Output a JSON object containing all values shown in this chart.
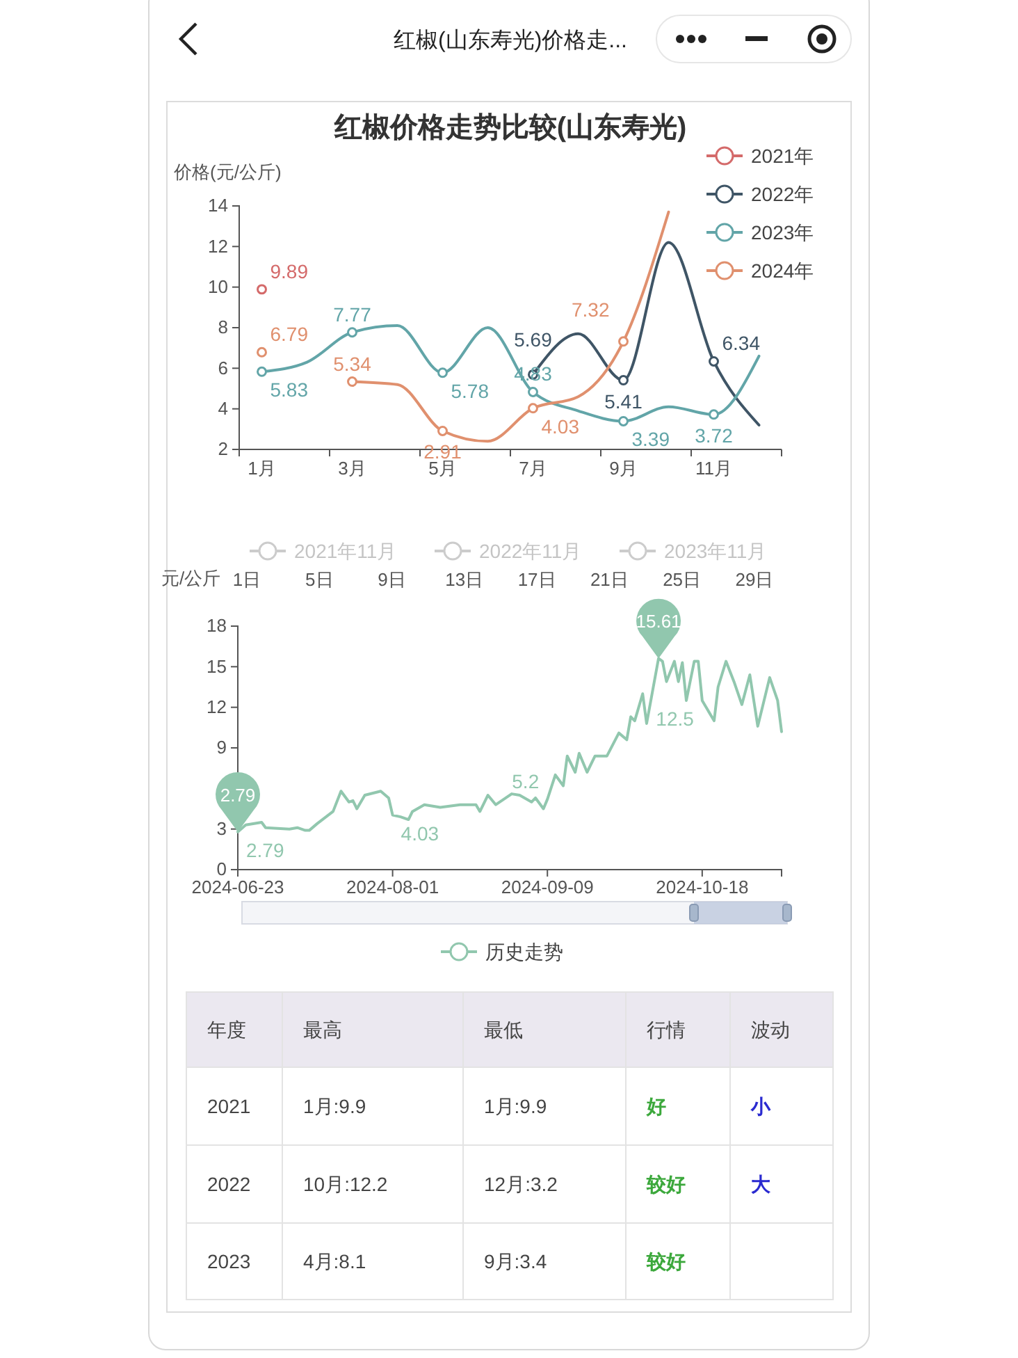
{
  "chart_data": [
    {
      "type": "other",
      "title": "红椒(山东寿光)价格走..."
    },
    {
      "type": "line",
      "title": "红椒价格走势比较(山东寿光)",
      "ylabel": "价格(元/公斤)",
      "categories": [
        "1月",
        null,
        "3月",
        null,
        "5月",
        null,
        "7月",
        null,
        "9月",
        null,
        "11月",
        null
      ],
      "ylim": [
        2,
        14
      ],
      "yticks": [
        2,
        4,
        6,
        8,
        10,
        12,
        14
      ],
      "legend": "top right",
      "marker": "circle",
      "series": [
        {
          "name": "2021年",
          "color": "#d46a6a",
          "values": [
            9.89,
            null,
            null,
            null,
            null,
            null,
            null,
            null,
            null,
            null,
            null,
            null
          ],
          "value_labels": [
            "9.89",
            null,
            null,
            null,
            null,
            null,
            null,
            null,
            null,
            null,
            null,
            null
          ]
        },
        {
          "name": "2022年",
          "color": "#3f5566",
          "values": [
            null,
            null,
            null,
            null,
            null,
            null,
            5.69,
            7.7,
            5.41,
            12.2,
            6.34,
            3.2
          ],
          "value_labels": [
            null,
            null,
            null,
            null,
            null,
            null,
            "5.69",
            null,
            "5.41",
            null,
            "6.34",
            null
          ]
        },
        {
          "name": "2023年",
          "color": "#62a5a8",
          "values": [
            5.83,
            6.3,
            7.77,
            8.1,
            5.78,
            8.0,
            4.83,
            3.9,
            3.39,
            4.1,
            3.72,
            6.6
          ],
          "value_labels": [
            "5.83",
            null,
            "7.77",
            null,
            "5.78",
            null,
            "4.83",
            null,
            "3.39",
            null,
            "3.72",
            null
          ]
        },
        {
          "name": "2024年",
          "color": "#e0906e",
          "values": [
            6.79,
            null,
            5.34,
            5.2,
            2.91,
            2.4,
            4.03,
            4.6,
            7.32,
            13.7,
            null,
            null
          ],
          "value_labels": [
            "6.79",
            null,
            "5.34",
            null,
            "2.91",
            null,
            "4.03",
            null,
            "7.32",
            null,
            null,
            null
          ]
        }
      ]
    },
    {
      "type": "line",
      "ylabel": "元/公斤",
      "xlim": [
        "2024-06-23",
        "2024-11-07"
      ],
      "xticks": [
        "2024-06-23",
        "2024-08-01",
        "2024-09-09",
        "2024-10-18"
      ],
      "x2lim": [
        0.5,
        30.5
      ],
      "x2ticks": [
        {
          "value": 1,
          "label": "1日"
        },
        {
          "value": 5,
          "label": "5日"
        },
        {
          "value": 9,
          "label": "9日"
        },
        {
          "value": 13,
          "label": "13日"
        },
        {
          "value": 17,
          "label": "17日"
        },
        {
          "value": 21,
          "label": "21日"
        },
        {
          "value": 25,
          "label": "25日"
        },
        {
          "value": 29,
          "label": "29日"
        }
      ],
      "ylim": [
        0,
        18
      ],
      "yticks": [
        0,
        3,
        6,
        9,
        12,
        15,
        18
      ],
      "legend": "bottom",
      "annotations": [
        {
          "text": "15.61",
          "x": "2024-10-07",
          "y": 15.61
        },
        {
          "text": "2.79",
          "x": "2024-06-23",
          "y": 2.79
        },
        "2021年11月",
        "2022年11月",
        "2023年11月"
      ],
      "series": [
        {
          "name": "历史走势",
          "color": "#91c7ae",
          "x": [
            "2024-06-23",
            "2024-06-25",
            "2024-06-29",
            "2024-06-30",
            "2024-07-06",
            "2024-07-08",
            "2024-07-10",
            "2024-07-11",
            "2024-07-13",
            "2024-07-17",
            "2024-07-19",
            "2024-07-21",
            "2024-07-22",
            "2024-07-23",
            "2024-07-25",
            "2024-07-29",
            "2024-07-31",
            "2024-08-01",
            "2024-08-03",
            "2024-08-05",
            "2024-08-06",
            "2024-08-09",
            "2024-08-13",
            "2024-08-18",
            "2024-08-22",
            "2024-08-23",
            "2024-08-25",
            "2024-08-27",
            "2024-08-31",
            "2024-09-02",
            "2024-09-05",
            "2024-09-06",
            "2024-09-08",
            "2024-09-09",
            "2024-09-11",
            "2024-09-13",
            "2024-09-14",
            "2024-09-16",
            "2024-09-17",
            "2024-09-19",
            "2024-09-21",
            "2024-09-24",
            "2024-09-27",
            "2024-09-29",
            "2024-09-30",
            "2024-10-01",
            "2024-10-03",
            "2024-10-04",
            "2024-10-07",
            "2024-10-08",
            "2024-10-09",
            "2024-10-11",
            "2024-10-12",
            "2024-10-13",
            "2024-10-14",
            "2024-10-16",
            "2024-10-17",
            "2024-10-18",
            "2024-10-21",
            "2024-10-22",
            "2024-10-24",
            "2024-10-26",
            "2024-10-28",
            "2024-10-30",
            "2024-11-01",
            "2024-11-04",
            "2024-11-06",
            "2024-11-07"
          ],
          "values": [
            2.79,
            3.3,
            3.5,
            3.1,
            3.0,
            3.1,
            2.9,
            2.9,
            3.4,
            4.3,
            5.8,
            5.0,
            5.1,
            4.5,
            5.5,
            5.8,
            5.3,
            4.03,
            3.9,
            3.7,
            4.3,
            4.8,
            4.6,
            4.8,
            4.8,
            4.3,
            5.5,
            4.8,
            5.6,
            5.5,
            5.0,
            5.3,
            4.5,
            5.2,
            7.0,
            6.2,
            8.4,
            7.2,
            8.6,
            7.2,
            8.4,
            8.4,
            10.1,
            9.6,
            11.3,
            11.0,
            13.0,
            10.8,
            15.61,
            15.4,
            13.9,
            15.4,
            13.9,
            15.3,
            12.5,
            15.4,
            15.4,
            12.5,
            11.0,
            13.5,
            15.4,
            13.9,
            12.2,
            14.4,
            10.6,
            14.2,
            12.5,
            10.2
          ],
          "value_labels": [
            "2.79",
            null,
            null,
            null,
            null,
            null,
            null,
            null,
            null,
            null,
            null,
            null,
            null,
            null,
            null,
            null,
            null,
            "4.03",
            null,
            null,
            null,
            null,
            null,
            null,
            null,
            null,
            null,
            null,
            null,
            null,
            null,
            null,
            null,
            "5.2",
            null,
            null,
            null,
            null,
            null,
            null,
            null,
            null,
            null,
            null,
            null,
            null,
            null,
            null,
            null,
            null,
            null,
            null,
            null,
            null,
            null,
            null,
            null,
            "12.5",
            null,
            null,
            null,
            null,
            null,
            null,
            null,
            null,
            null,
            null
          ]
        }
      ]
    },
    {
      "type": "other",
      "categories": [
        "年度",
        "最高",
        "最低",
        "行情",
        "波动"
      ],
      "cell_labels": [
        [
          "2021",
          "1月:9.9",
          "1月:9.9",
          "好",
          "小"
        ],
        [
          "2022",
          "10月:12.2",
          "12月:3.2",
          "较好",
          "大"
        ],
        [
          "2023",
          "4月:8.1",
          "9月:3.4",
          "较好",
          null
        ]
      ]
    }
  ]
}
